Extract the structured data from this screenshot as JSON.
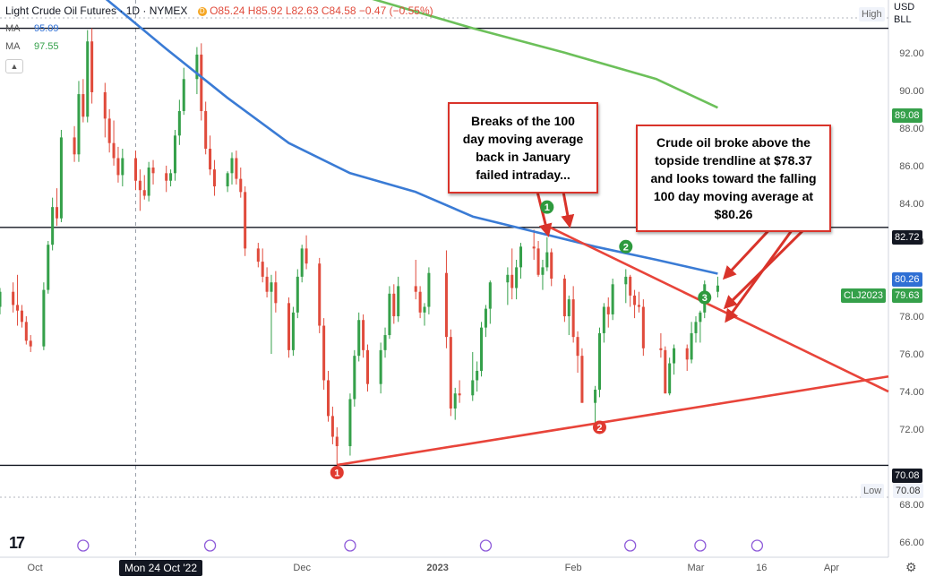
{
  "legend": {
    "title": "Light Crude Oil Futures · 1D · NYMEX",
    "ohlc": "O85.24 H85.92 L82.63 C84.58 −0.47 (−0.55%)",
    "market_badge": "D",
    "ma1_label": "MA",
    "ma1_value": "95.09",
    "ma2_label": "MA",
    "ma2_value": "97.55"
  },
  "axis_top": {
    "currency": "USD",
    "unit": "BLL"
  },
  "badges": {
    "high_label": "High",
    "low_label": "Low",
    "low_value": "70.08",
    "ma_green_value": "89.08",
    "ma_blue_value": "80.26",
    "resistance_value": "82.72",
    "support_value": "70.08",
    "symbol": "CLJ2023",
    "symbol_price": "79.63"
  },
  "callouts": {
    "left": [
      "Breaks of the 100",
      "day moving average",
      "back in January",
      "failed intraday..."
    ],
    "right": [
      "Crude oil broke above the",
      "topside trendline at $78.37",
      "and looks toward the falling",
      "100 day moving average at",
      "$80.26"
    ]
  },
  "crosshair_label": "Mon 24 Oct '22",
  "markers": {
    "green": [
      "1",
      "2",
      "3"
    ],
    "red": [
      "1",
      "2"
    ]
  },
  "colors": {
    "up": "#35a04a",
    "down": "#e04b3c",
    "ma100": "#3a7bd5",
    "ma200": "#6cc05a",
    "trendline": "#e8443a",
    "annotation": "#d9332a"
  },
  "chart_data": {
    "type": "candlestick",
    "title": "Light Crude Oil Futures · 1D · NYMEX",
    "y_axis": {
      "ticks": [
        "92.00",
        "90.00",
        "88.00",
        "86.00",
        "84.00",
        "82.00",
        "78.00",
        "76.00",
        "74.00",
        "72.00",
        "68.00",
        "66.00"
      ],
      "range": [
        65.2,
        94.8
      ]
    },
    "x_axis": {
      "ticks": [
        "Oct",
        "Dec",
        "2023",
        "Feb",
        "Mar",
        "16",
        "Apr"
      ],
      "range": [
        "2022-09-23",
        "2023-04-14"
      ]
    },
    "horizontal_lines": [
      93.3,
      82.72,
      70.08
    ],
    "series": [
      {
        "name": "MA",
        "value": "95.09",
        "color": "#3a7bd5"
      },
      {
        "name": "MA",
        "value": "97.55",
        "color": "#6cc05a"
      }
    ],
    "ma100_points": [
      [
        "2022-10-17",
        94.9
      ],
      [
        "2022-10-31",
        92.2
      ],
      [
        "2022-11-14",
        89.6
      ],
      [
        "2022-11-28",
        87.2
      ],
      [
        "2022-12-12",
        85.6
      ],
      [
        "2022-12-27",
        84.6
      ],
      [
        "2023-01-09",
        83.3
      ],
      [
        "2023-01-23",
        82.5
      ],
      [
        "2023-02-06",
        81.7
      ],
      [
        "2023-02-20",
        81.0
      ],
      [
        "2023-03-06",
        80.26
      ]
    ],
    "ma200_points": [
      [
        "2022-12-15",
        95.0
      ],
      [
        "2023-01-09",
        93.3
      ],
      [
        "2023-01-30",
        92.0
      ],
      [
        "2023-02-20",
        90.6
      ],
      [
        "2023-03-06",
        89.08
      ]
    ],
    "trendlines": [
      {
        "label": "topside trendline",
        "from": [
          "2023-01-26",
          82.8
        ],
        "to": [
          "2023-04-14",
          74.0
        ]
      },
      {
        "label": "rising trendline",
        "from": [
          "2022-12-09",
          70.1
        ],
        "to": [
          "2023-04-14",
          74.8
        ]
      }
    ],
    "candles": [
      [
        "2022-09-23",
        78.5,
        79.5,
        78.1,
        79.3
      ],
      [
        "2022-09-26",
        79.3,
        79.8,
        78.2,
        78.6
      ],
      [
        "2022-09-27",
        78.6,
        80.2,
        77.5,
        78.3
      ],
      [
        "2022-09-28",
        78.3,
        78.6,
        77.4,
        77.7
      ],
      [
        "2022-09-29",
        77.7,
        78.0,
        76.5,
        76.7
      ],
      [
        "2022-09-30",
        76.7,
        77.0,
        76.1,
        76.4
      ],
      [
        "2022-10-03",
        76.4,
        79.8,
        76.2,
        79.4
      ],
      [
        "2022-10-04",
        79.4,
        82.0,
        79.2,
        81.8
      ],
      [
        "2022-10-05",
        81.8,
        84.3,
        81.5,
        83.8
      ],
      [
        "2022-10-06",
        83.8,
        84.8,
        82.8,
        83.2
      ],
      [
        "2022-10-07",
        83.2,
        87.9,
        83.0,
        87.5
      ],
      [
        "2022-10-10",
        87.5,
        88.1,
        86.2,
        86.6
      ],
      [
        "2022-10-11",
        86.6,
        90.5,
        86.2,
        89.8
      ],
      [
        "2022-10-12",
        89.8,
        90.6,
        88.3,
        88.6
      ],
      [
        "2022-10-13",
        88.6,
        93.2,
        88.3,
        92.6
      ],
      [
        "2022-10-14",
        92.6,
        93.3,
        89.3,
        89.9
      ],
      [
        "2022-10-17",
        89.9,
        90.4,
        87.5,
        88.5
      ],
      [
        "2022-10-18",
        88.5,
        89.0,
        86.7,
        87.2
      ],
      [
        "2022-10-19",
        87.2,
        88.4,
        86.0,
        86.4
      ],
      [
        "2022-10-20",
        86.4,
        87.0,
        85.1,
        85.5
      ],
      [
        "2022-10-21",
        85.5,
        86.9,
        84.9,
        86.4
      ],
      [
        "2022-10-24",
        86.4,
        86.8,
        84.7,
        85.2
      ],
      [
        "2022-10-25",
        85.2,
        85.8,
        83.6,
        84.7
      ],
      [
        "2022-10-26",
        84.7,
        85.5,
        84.2,
        84.4
      ],
      [
        "2022-10-27",
        84.4,
        86.2,
        84.1,
        85.9
      ],
      [
        "2022-10-28",
        85.9,
        86.3,
        85.0,
        85.6
      ],
      [
        "2022-10-31",
        85.6,
        86.0,
        84.6,
        85.2
      ],
      [
        "2022-11-01",
        85.2,
        85.8,
        84.9,
        85.6
      ],
      [
        "2022-11-02",
        85.6,
        87.9,
        85.2,
        87.6
      ],
      [
        "2022-11-03",
        87.6,
        89.5,
        87.1,
        88.9
      ],
      [
        "2022-11-04",
        88.9,
        91.2,
        88.7,
        90.6
      ],
      [
        "2022-11-07",
        90.6,
        92.3,
        89.8,
        91.9
      ],
      [
        "2022-11-08",
        91.9,
        92.5,
        88.4,
        88.9
      ],
      [
        "2022-11-09",
        88.9,
        89.4,
        86.6,
        86.9
      ],
      [
        "2022-11-10",
        86.9,
        87.6,
        85.5,
        85.8
      ],
      [
        "2022-11-11",
        85.8,
        86.3,
        84.4,
        84.9
      ],
      [
        "2022-11-14",
        84.9,
        85.7,
        84.6,
        85.6
      ],
      [
        "2022-11-15",
        85.6,
        86.7,
        85.0,
        86.4
      ],
      [
        "2022-11-16",
        86.4,
        86.8,
        85.0,
        85.3
      ],
      [
        "2022-11-17",
        85.3,
        85.9,
        84.3,
        84.6
      ],
      [
        "2022-11-18",
        84.6,
        84.9,
        81.2,
        81.6
      ],
      [
        "2022-11-21",
        81.6,
        81.9,
        80.6,
        80.9
      ],
      [
        "2022-11-22",
        80.9,
        81.6,
        79.8,
        80.1
      ],
      [
        "2022-11-23",
        80.1,
        80.6,
        79.0,
        79.3
      ],
      [
        "2022-11-24",
        79.3,
        80.2,
        76.0,
        79.8
      ],
      [
        "2022-11-25",
        79.8,
        80.4,
        78.2,
        78.7
      ],
      [
        "2022-11-28",
        78.7,
        79.0,
        75.8,
        76.2
      ],
      [
        "2022-11-29",
        76.2,
        78.5,
        75.9,
        78.2
      ],
      [
        "2022-11-30",
        78.2,
        80.5,
        77.9,
        80.1
      ],
      [
        "2022-12-01",
        80.1,
        81.8,
        79.8,
        81.6
      ],
      [
        "2022-12-02",
        81.6,
        82.3,
        80.5,
        80.8
      ],
      [
        "2022-12-05",
        80.8,
        81.1,
        77.1,
        77.5
      ],
      [
        "2022-12-06",
        77.5,
        77.9,
        74.1,
        74.6
      ],
      [
        "2022-12-07",
        74.6,
        75.1,
        72.4,
        72.7
      ],
      [
        "2022-12-08",
        72.7,
        73.2,
        71.2,
        71.6
      ],
      [
        "2022-12-09",
        71.6,
        72.1,
        70.1,
        71.1
      ],
      [
        "2022-12-12",
        71.1,
        73.9,
        70.6,
        73.6
      ],
      [
        "2022-12-13",
        73.6,
        76.2,
        73.2,
        75.9
      ],
      [
        "2022-12-14",
        75.9,
        78.2,
        75.6,
        77.8
      ],
      [
        "2022-12-15",
        77.8,
        78.1,
        75.8,
        76.2
      ],
      [
        "2022-12-16",
        76.2,
        76.5,
        74.0,
        74.4
      ],
      [
        "2022-12-19",
        74.4,
        76.6,
        73.9,
        76.2
      ],
      [
        "2022-12-20",
        76.2,
        77.4,
        75.8,
        77.0
      ],
      [
        "2022-12-21",
        77.0,
        79.6,
        76.8,
        79.2
      ],
      [
        "2022-12-22",
        79.2,
        79.7,
        77.6,
        78.0
      ],
      [
        "2022-12-23",
        78.0,
        80.1,
        77.7,
        79.6
      ],
      [
        "2022-12-27",
        79.6,
        81.0,
        78.9,
        79.3
      ],
      [
        "2022-12-28",
        79.3,
        79.6,
        77.9,
        78.2
      ],
      [
        "2022-12-29",
        78.2,
        78.7,
        77.5,
        78.5
      ],
      [
        "2022-12-30",
        78.5,
        80.6,
        78.1,
        80.3
      ],
      [
        "2023-01-03",
        80.3,
        81.5,
        76.3,
        76.9
      ],
      [
        "2023-01-04",
        76.9,
        77.3,
        72.7,
        73.1
      ],
      [
        "2023-01-05",
        73.1,
        74.2,
        72.5,
        73.9
      ],
      [
        "2023-01-06",
        73.9,
        74.6,
        73.4,
        73.8
      ],
      [
        "2023-01-09",
        73.8,
        76.1,
        73.5,
        74.6
      ],
      [
        "2023-01-10",
        74.6,
        75.6,
        74.0,
        75.1
      ],
      [
        "2023-01-11",
        75.1,
        77.7,
        74.8,
        77.4
      ],
      [
        "2023-01-12",
        77.4,
        78.6,
        76.9,
        78.4
      ],
      [
        "2023-01-13",
        78.4,
        79.9,
        77.6,
        79.8
      ],
      [
        "2023-01-17",
        79.8,
        80.6,
        78.6,
        80.2
      ],
      [
        "2023-01-18",
        80.2,
        81.6,
        78.9,
        79.5
      ],
      [
        "2023-01-19",
        79.5,
        81.0,
        78.9,
        80.6
      ],
      [
        "2023-01-20",
        80.6,
        81.9,
        80.0,
        81.7
      ],
      [
        "2023-01-23",
        81.7,
        82.6,
        81.0,
        81.6
      ],
      [
        "2023-01-24",
        81.6,
        82.0,
        80.1,
        80.2
      ],
      [
        "2023-01-25",
        80.2,
        81.0,
        79.4,
        80.6
      ],
      [
        "2023-01-26",
        80.6,
        82.2,
        80.4,
        81.4
      ],
      [
        "2023-01-27",
        81.4,
        81.6,
        79.6,
        80.0
      ],
      [
        "2023-01-30",
        80.0,
        80.2,
        77.7,
        78.0
      ],
      [
        "2023-01-31",
        78.0,
        79.1,
        77.0,
        78.9
      ],
      [
        "2023-02-01",
        78.9,
        79.6,
        76.6,
        76.9
      ],
      [
        "2023-02-02",
        76.9,
        77.2,
        75.0,
        75.9
      ],
      [
        "2023-02-03",
        75.9,
        76.3,
        73.4,
        73.4
      ],
      [
        "2023-02-06",
        73.4,
        74.3,
        72.3,
        74.1
      ],
      [
        "2023-02-07",
        74.1,
        77.4,
        73.7,
        77.1
      ],
      [
        "2023-02-08",
        77.1,
        78.7,
        76.6,
        78.5
      ],
      [
        "2023-02-09",
        78.5,
        79.0,
        77.4,
        78.1
      ],
      [
        "2023-02-10",
        78.1,
        80.0,
        77.8,
        79.7
      ],
      [
        "2023-02-13",
        79.7,
        80.5,
        78.7,
        80.1
      ],
      [
        "2023-02-14",
        80.1,
        80.2,
        78.5,
        79.1
      ],
      [
        "2023-02-15",
        79.1,
        79.4,
        77.9,
        78.6
      ],
      [
        "2023-02-16",
        78.6,
        79.3,
        78.2,
        78.5
      ],
      [
        "2023-02-17",
        78.5,
        78.9,
        75.9,
        76.3
      ],
      [
        "2023-02-21",
        76.3,
        77.1,
        75.8,
        76.2
      ],
      [
        "2023-02-22",
        76.2,
        76.4,
        73.9,
        73.9
      ],
      [
        "2023-02-23",
        73.9,
        75.8,
        73.8,
        75.5
      ],
      [
        "2023-02-24",
        75.5,
        76.5,
        74.9,
        76.3
      ],
      [
        "2023-02-27",
        76.3,
        76.5,
        75.1,
        75.7
      ],
      [
        "2023-02-28",
        75.7,
        77.7,
        75.5,
        77.1
      ],
      [
        "2023-03-01",
        77.1,
        78.0,
        76.6,
        77.7
      ],
      [
        "2023-03-02",
        77.7,
        78.3,
        76.6,
        78.2
      ],
      [
        "2023-03-03",
        78.2,
        79.9,
        77.9,
        79.7
      ],
      [
        "2023-03-06",
        79.3,
        80.1,
        79.0,
        79.63
      ]
    ]
  }
}
